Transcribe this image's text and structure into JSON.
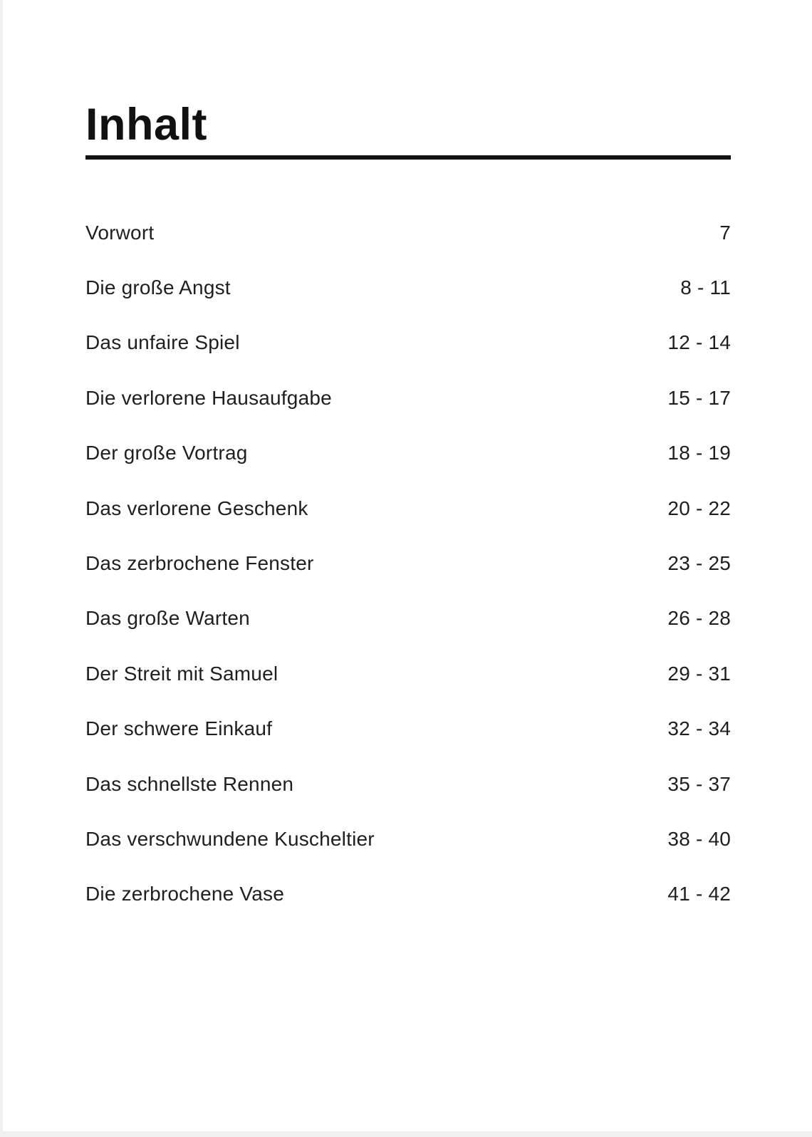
{
  "page": {
    "title": "Inhalt"
  },
  "toc": {
    "entries": [
      {
        "title": "Vorwort",
        "pages": "7"
      },
      {
        "title": "Die große Angst",
        "pages": "8 - 11"
      },
      {
        "title": "Das unfaire Spiel",
        "pages": "12 - 14"
      },
      {
        "title": "Die verlorene Hausaufgabe",
        "pages": "15 - 17"
      },
      {
        "title": "Der große Vortrag",
        "pages": "18 - 19"
      },
      {
        "title": "Das verlorene Geschenk",
        "pages": "20 - 22"
      },
      {
        "title": "Das zerbrochene Fenster",
        "pages": "23 - 25"
      },
      {
        "title": "Das große Warten",
        "pages": "26 - 28"
      },
      {
        "title": "Der Streit mit Samuel",
        "pages": "29 - 31"
      },
      {
        "title": "Der schwere Einkauf",
        "pages": "32 - 34"
      },
      {
        "title": "Das schnellste Rennen",
        "pages": "35 - 37"
      },
      {
        "title": "Das verschwundene Kuscheltier",
        "pages": "38 - 40"
      },
      {
        "title": "Die zerbrochene Vase",
        "pages": "41 - 42"
      }
    ]
  },
  "colors": {
    "title": "#111111",
    "text": "#1f1f1f",
    "rule": "#131313",
    "page_background": "#ffffff",
    "canvas_background": "#f0f0f0"
  }
}
